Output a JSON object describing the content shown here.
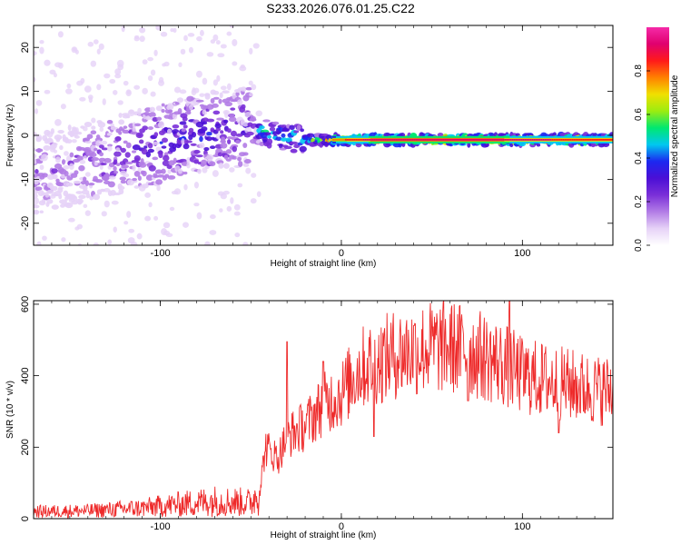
{
  "page_title": "S233.2026.076.01.25.C22",
  "colors": {
    "snr_line": "#ee2a2a",
    "colormap": [
      "#ffffff",
      "#e6d2f7",
      "#b27ce6",
      "#7a2fd8",
      "#4b0fd6",
      "#1c28f0",
      "#00c8f0",
      "#00e870",
      "#9cec10",
      "#f0e000",
      "#ff8000",
      "#ff1a1a",
      "#e0006e",
      "#f52aa8"
    ]
  },
  "chart_data": [
    {
      "type": "heatmap",
      "title": "S233.2026.076.01.25.C22",
      "xlabel": "Height of straight line (km)",
      "ylabel": "Frequency (Hz)",
      "xlim": [
        -170,
        150
      ],
      "ylim": [
        -25,
        25
      ],
      "xticks": [
        -100,
        0,
        100
      ],
      "yticks": [
        -20,
        -10,
        0,
        10,
        20
      ],
      "colorbar": {
        "label": "Normalized spectral amplitude",
        "range": [
          0,
          1
        ],
        "ticks": [
          "0.0",
          "0.2",
          "0.4",
          "0.6",
          "0.8"
        ]
      },
      "ridge": {
        "x": [
          -170,
          -150,
          -130,
          -110,
          -90,
          -70,
          -55,
          -45,
          -35,
          -20,
          -10,
          0,
          20,
          60,
          100,
          150
        ],
        "freq_hz": [
          -9,
          -7,
          -5,
          -3,
          -1,
          1,
          2,
          1,
          0,
          -1,
          -1,
          -1,
          -1,
          -1,
          -1,
          -1
        ],
        "amplitude": [
          0.2,
          0.2,
          0.25,
          0.3,
          0.35,
          0.35,
          0.3,
          0.5,
          0.55,
          0.6,
          0.7,
          0.8,
          0.95,
          0.95,
          0.9,
          0.85
        ]
      }
    },
    {
      "type": "line",
      "xlabel": "Height of straight line (km)",
      "ylabel": "SNR (10 * v/v)",
      "xlim": [
        -170,
        150
      ],
      "ylim": [
        0,
        610
      ],
      "xticks": [
        -100,
        0,
        100
      ],
      "yticks": [
        0,
        200,
        400,
        600
      ],
      "series": [
        {
          "name": "SNR",
          "envelope_x": [
            -170,
            -140,
            -110,
            -90,
            -70,
            -50,
            -45,
            -42,
            -35,
            -30,
            -20,
            -10,
            0,
            10,
            20,
            30,
            40,
            50,
            60,
            70,
            80,
            90,
            100,
            110,
            120,
            130,
            140,
            150
          ],
          "envelope_y": [
            20,
            22,
            30,
            40,
            50,
            45,
            80,
            200,
            170,
            230,
            260,
            320,
            350,
            420,
            440,
            460,
            470,
            480,
            480,
            470,
            450,
            430,
            400,
            390,
            380,
            370,
            360,
            360
          ],
          "peaks": [
            {
              "x": -30,
              "y": 495
            },
            {
              "x": -10,
              "y": 440
            },
            {
              "x": 40,
              "y": 540
            },
            {
              "x": 93,
              "y": 612
            },
            {
              "x": 70,
              "y": 330
            },
            {
              "x": 120,
              "y": 240
            },
            {
              "x": 18,
              "y": 230
            }
          ]
        }
      ]
    }
  ]
}
